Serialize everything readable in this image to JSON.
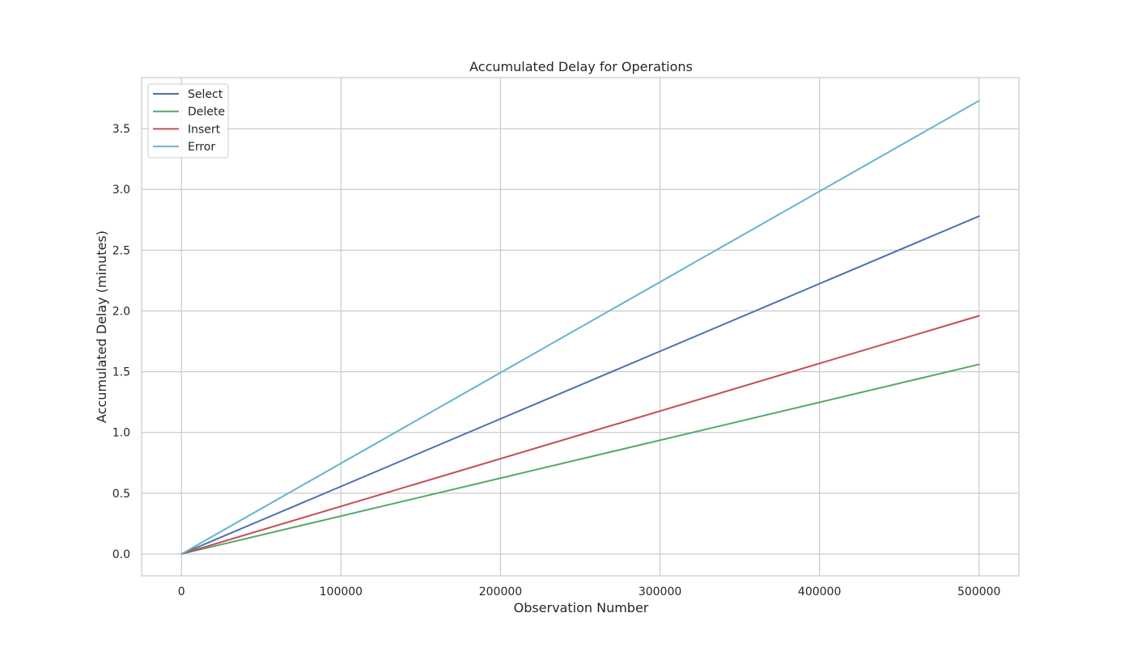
{
  "chart_data": {
    "type": "line",
    "title": "Accumulated Delay for Operations",
    "xlabel": "Observation Number",
    "ylabel": "Accumulated Delay (minutes)",
    "xlim": [
      -25000,
      525000
    ],
    "ylim": [
      -0.18,
      3.92
    ],
    "xticks": [
      0,
      100000,
      200000,
      300000,
      400000,
      500000
    ],
    "xtick_labels": [
      "0",
      "100000",
      "200000",
      "300000",
      "400000",
      "500000"
    ],
    "yticks": [
      0.0,
      0.5,
      1.0,
      1.5,
      2.0,
      2.5,
      3.0,
      3.5
    ],
    "ytick_labels": [
      "0.0",
      "0.5",
      "1.0",
      "1.5",
      "2.0",
      "2.5",
      "3.0",
      "3.5"
    ],
    "grid": true,
    "legend_position": "top-left",
    "series": [
      {
        "name": "Select",
        "color": "#4c72b0",
        "x": [
          0,
          500000
        ],
        "y": [
          0.0,
          2.78
        ]
      },
      {
        "name": "Delete",
        "color": "#55a868",
        "x": [
          0,
          500000
        ],
        "y": [
          0.0,
          1.56
        ]
      },
      {
        "name": "Insert",
        "color": "#c44e52",
        "x": [
          0,
          500000
        ],
        "y": [
          0.0,
          1.96
        ]
      },
      {
        "name": "Error",
        "color": "#64b5cd",
        "x": [
          0,
          500000
        ],
        "y": [
          0.0,
          3.73
        ]
      }
    ]
  }
}
